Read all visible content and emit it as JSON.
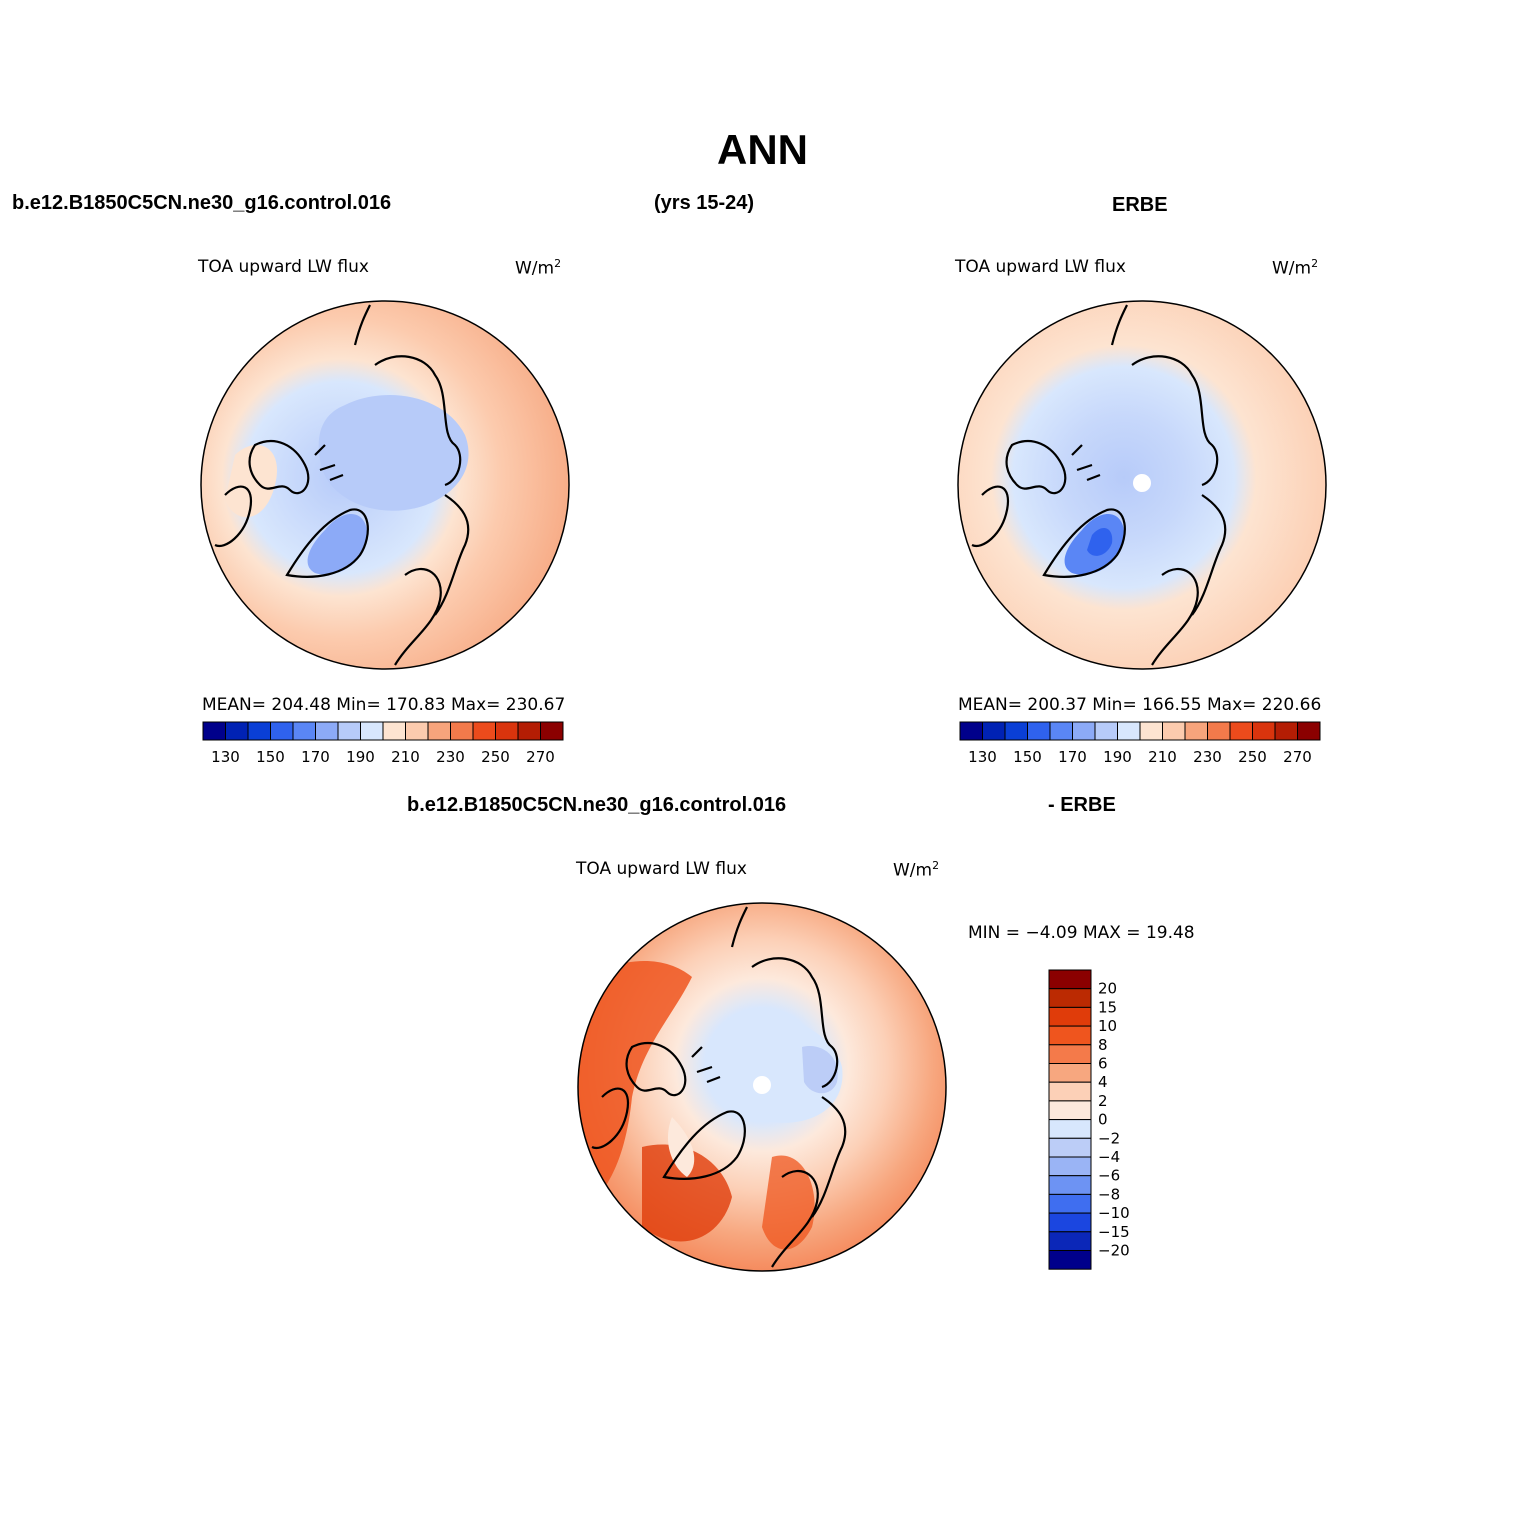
{
  "figure": {
    "title": "ANN",
    "case_name": "b.e12.B1850C5CN.ne30_g16.control.016",
    "years": "(yrs 15-24)",
    "obs_name": "ERBE",
    "diff_case": "b.e12.B1850C5CN.ne30_g16.control.016",
    "diff_obs": "- ERBE"
  },
  "panels": {
    "model": {
      "variable": "TOA upward LW flux",
      "units": "W/m",
      "units_sup": "2",
      "stats": "MEAN= 204.48   Min= 170.83   Max= 230.67"
    },
    "obs": {
      "variable": "TOA upward LW flux",
      "units": "W/m",
      "units_sup": "2",
      "stats": "MEAN= 200.37   Min= 166.55   Max= 220.66"
    },
    "diff": {
      "variable": "TOA upward LW flux",
      "units": "W/m",
      "units_sup": "2",
      "stats": "MIN =  −4.09  MAX =   19.48"
    }
  },
  "colorbar_main": {
    "colors": [
      "#00008b",
      "#0022b4",
      "#0a3fd6",
      "#2f62ee",
      "#5a86f5",
      "#8caaf7",
      "#b7cbf9",
      "#d8e7fd",
      "#fde4d1",
      "#fccbae",
      "#f7a47c",
      "#f37a4b",
      "#ec4b1c",
      "#d9340d",
      "#b41d04",
      "#8b0000"
    ],
    "labels": [
      "130",
      "150",
      "170",
      "190",
      "210",
      "230",
      "250",
      "270"
    ]
  },
  "colorbar_diff": {
    "colors": [
      "#8b0000",
      "#bb2a02",
      "#e03c0a",
      "#ef551e",
      "#f47a4a",
      "#f7a77f",
      "#fcd0b7",
      "#fde9dc",
      "#d8e7fd",
      "#bccdf7",
      "#9ab4f5",
      "#6d93f3",
      "#3f6ef0",
      "#1b46e0",
      "#0b27b8",
      "#00008b"
    ],
    "labels": [
      "20",
      "15",
      "10",
      "8",
      "6",
      "4",
      "2",
      "0",
      "−2",
      "−4",
      "−6",
      "−8",
      "−10",
      "−15",
      "−20"
    ]
  }
}
